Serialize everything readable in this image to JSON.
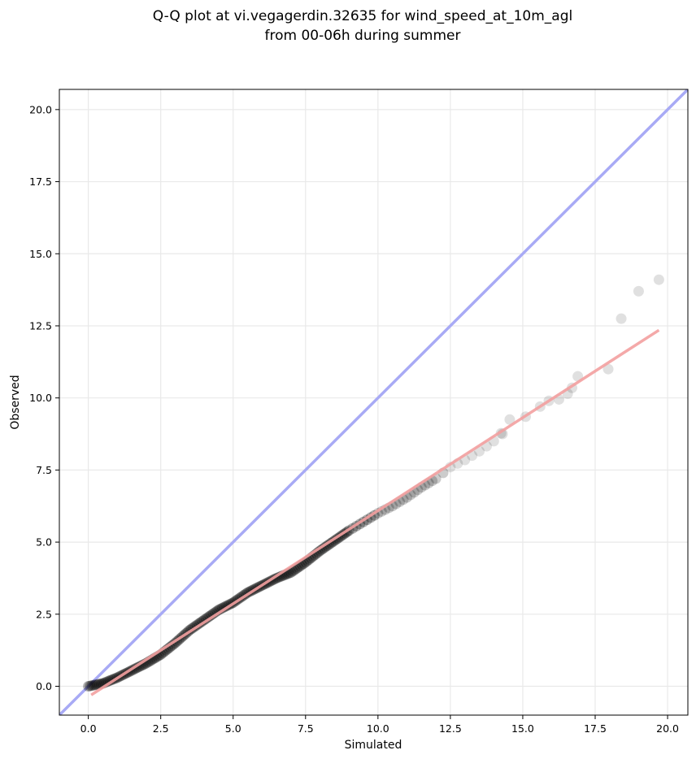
{
  "chart_data": {
    "type": "scatter",
    "title_lines": [
      "Q-Q plot at vi.vegagerdin.32635 for wind_speed_at_10m_agl",
      "from 00-06h during summer"
    ],
    "xlabel": "Simulated",
    "ylabel": "Observed",
    "xlim": [
      -1.0,
      20.7
    ],
    "ylim": [
      -1.0,
      20.7
    ],
    "xticks": [
      0.0,
      2.5,
      5.0,
      7.5,
      10.0,
      12.5,
      15.0,
      17.5,
      20.0
    ],
    "yticks": [
      0.0,
      2.5,
      5.0,
      7.5,
      10.0,
      12.5,
      15.0,
      17.5,
      20.0
    ],
    "xtick_labels": [
      "0.0",
      "2.5",
      "5.0",
      "7.5",
      "10.0",
      "12.5",
      "15.0",
      "17.5",
      "20.0"
    ],
    "ytick_labels": [
      "0.0",
      "2.5",
      "5.0",
      "7.5",
      "10.0",
      "12.5",
      "15.0",
      "17.5",
      "20.0"
    ],
    "grid": true,
    "colors": {
      "points": "#000000",
      "identity_line": "#a8aaf5",
      "fit_line": "#f3a0a0"
    },
    "identity_line": {
      "x": [
        -1.0,
        20.7
      ],
      "y": [
        -1.0,
        20.7
      ]
    },
    "fit_line": {
      "x": [
        0.1,
        19.7
      ],
      "y": [
        -0.3,
        12.35
      ]
    },
    "quantile_curve": [
      {
        "x": 0.0,
        "y": 0.0
      },
      {
        "x": 0.5,
        "y": 0.1
      },
      {
        "x": 1.0,
        "y": 0.3
      },
      {
        "x": 1.5,
        "y": 0.55
      },
      {
        "x": 2.0,
        "y": 0.8
      },
      {
        "x": 2.5,
        "y": 1.1
      },
      {
        "x": 3.0,
        "y": 1.5
      },
      {
        "x": 3.5,
        "y": 1.95
      },
      {
        "x": 4.0,
        "y": 2.3
      },
      {
        "x": 4.5,
        "y": 2.65
      },
      {
        "x": 5.0,
        "y": 2.9
      },
      {
        "x": 5.5,
        "y": 3.25
      },
      {
        "x": 6.0,
        "y": 3.5
      },
      {
        "x": 6.5,
        "y": 3.75
      },
      {
        "x": 7.0,
        "y": 3.95
      },
      {
        "x": 7.5,
        "y": 4.3
      },
      {
        "x": 8.0,
        "y": 4.7
      },
      {
        "x": 8.5,
        "y": 5.05
      },
      {
        "x": 9.0,
        "y": 5.4
      },
      {
        "x": 9.5,
        "y": 5.7
      },
      {
        "x": 10.0,
        "y": 6.0
      },
      {
        "x": 10.5,
        "y": 6.25
      },
      {
        "x": 11.0,
        "y": 6.55
      },
      {
        "x": 11.5,
        "y": 6.9
      },
      {
        "x": 12.0,
        "y": 7.2
      },
      {
        "x": 12.5,
        "y": 7.6
      },
      {
        "x": 13.0,
        "y": 7.85
      },
      {
        "x": 13.5,
        "y": 8.15
      },
      {
        "x": 14.0,
        "y": 8.5
      },
      {
        "x": 14.5,
        "y": 9.05
      }
    ],
    "outlier_points": [
      {
        "x": 14.3,
        "y": 8.75
      },
      {
        "x": 14.55,
        "y": 9.25
      },
      {
        "x": 15.1,
        "y": 9.35
      },
      {
        "x": 15.6,
        "y": 9.7
      },
      {
        "x": 15.9,
        "y": 9.9
      },
      {
        "x": 16.25,
        "y": 9.95
      },
      {
        "x": 16.55,
        "y": 10.15
      },
      {
        "x": 16.7,
        "y": 10.35
      },
      {
        "x": 16.9,
        "y": 10.75
      },
      {
        "x": 17.95,
        "y": 11.0
      },
      {
        "x": 18.4,
        "y": 12.75
      },
      {
        "x": 19.0,
        "y": 13.7
      },
      {
        "x": 19.7,
        "y": 14.1
      }
    ]
  }
}
